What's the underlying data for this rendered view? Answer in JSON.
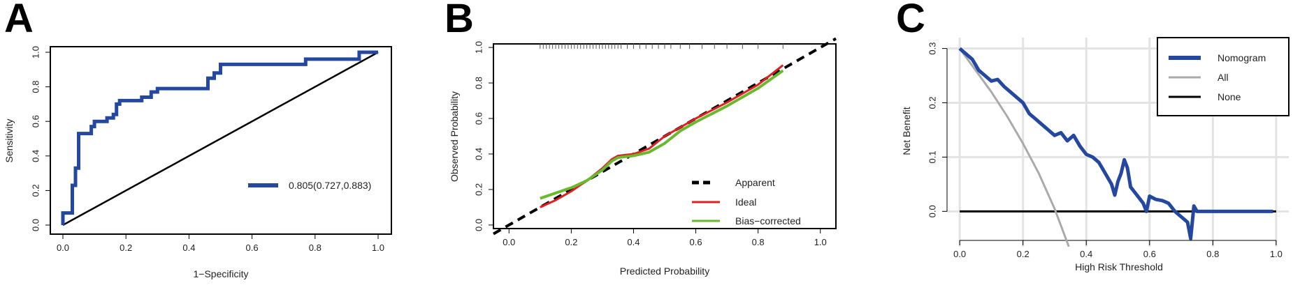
{
  "panels": [
    {
      "letter": "A"
    },
    {
      "letter": "B"
    },
    {
      "letter": "C"
    }
  ],
  "chart_data": [
    {
      "type": "line",
      "panel": "A",
      "xlabel": "1−Specificity",
      "ylabel": "Sensitivity",
      "xlim": [
        0,
        1
      ],
      "ylim": [
        0,
        1
      ],
      "xticks": [
        "0.0",
        "0.2",
        "0.4",
        "0.6",
        "0.8",
        "1.0"
      ],
      "yticks": [
        "0.0",
        "0.2",
        "0.4",
        "0.6",
        "0.8",
        "1.0"
      ],
      "legend_placement": "bottom-right",
      "colors": {
        "roc": "#2447a0",
        "reference": "#000000"
      },
      "series": [
        {
          "name": "0.805(0.727,0.883)",
          "x": [
            0,
            0,
            0.03,
            0.03,
            0.04,
            0.04,
            0.05,
            0.05,
            0.06,
            0.06,
            0.09,
            0.09,
            0.1,
            0.1,
            0.14,
            0.14,
            0.16,
            0.16,
            0.17,
            0.17,
            0.18,
            0.18,
            0.2,
            0.2,
            0.25,
            0.25,
            0.28,
            0.28,
            0.3,
            0.3,
            0.46,
            0.46,
            0.48,
            0.48,
            0.5,
            0.5,
            0.77,
            0.77,
            0.94,
            0.94,
            1.0
          ],
          "y": [
            0,
            0.07,
            0.07,
            0.23,
            0.23,
            0.33,
            0.33,
            0.53,
            0.53,
            0.53,
            0.53,
            0.57,
            0.57,
            0.6,
            0.6,
            0.62,
            0.62,
            0.64,
            0.64,
            0.7,
            0.7,
            0.72,
            0.72,
            0.72,
            0.72,
            0.74,
            0.74,
            0.77,
            0.77,
            0.79,
            0.79,
            0.85,
            0.85,
            0.88,
            0.88,
            0.93,
            0.93,
            0.96,
            0.96,
            1.0,
            1.0
          ]
        },
        {
          "x": [
            0,
            1
          ],
          "y": [
            0,
            1
          ]
        }
      ]
    },
    {
      "type": "line",
      "panel": "B",
      "xlabel": "Predicted Probability",
      "ylabel": "Observed Probability",
      "xlim": [
        -0.05,
        1.05
      ],
      "ylim": [
        -0.02,
        1.02
      ],
      "xticks": [
        "0.0",
        "0.2",
        "0.4",
        "0.6",
        "0.8",
        "1.0"
      ],
      "yticks": [
        "0.0",
        "0.2",
        "0.4",
        "0.6",
        "0.8",
        "1.0"
      ],
      "legend_placement": "bottom-right",
      "colors": {
        "apparent": "#000000",
        "ideal": "#e02020",
        "bias": "#6ab82e"
      },
      "series": [
        {
          "name": "Apparent",
          "x": [
            -0.05,
            1.05
          ],
          "y": [
            -0.05,
            1.05
          ]
        },
        {
          "name": "Ideal",
          "x": [
            0.1,
            0.15,
            0.2,
            0.25,
            0.3,
            0.33,
            0.35,
            0.4,
            0.45,
            0.5,
            0.55,
            0.6,
            0.7,
            0.8,
            0.88
          ],
          "y": [
            0.1,
            0.14,
            0.19,
            0.25,
            0.32,
            0.37,
            0.39,
            0.4,
            0.43,
            0.5,
            0.55,
            0.6,
            0.69,
            0.79,
            0.9
          ]
        },
        {
          "name": "Bias−corrected",
          "x": [
            0.1,
            0.15,
            0.2,
            0.25,
            0.3,
            0.33,
            0.35,
            0.4,
            0.45,
            0.5,
            0.55,
            0.6,
            0.7,
            0.8,
            0.88
          ],
          "y": [
            0.15,
            0.18,
            0.21,
            0.25,
            0.31,
            0.36,
            0.38,
            0.39,
            0.41,
            0.46,
            0.53,
            0.58,
            0.67,
            0.77,
            0.87
          ]
        }
      ],
      "rug_x": [
        0.1,
        0.11,
        0.12,
        0.13,
        0.14,
        0.15,
        0.16,
        0.17,
        0.18,
        0.19,
        0.2,
        0.21,
        0.22,
        0.23,
        0.24,
        0.25,
        0.26,
        0.27,
        0.28,
        0.29,
        0.3,
        0.31,
        0.32,
        0.33,
        0.34,
        0.35,
        0.36,
        0.38,
        0.4,
        0.42,
        0.44,
        0.46,
        0.48,
        0.5,
        0.52,
        0.55,
        0.58,
        0.62,
        0.66,
        0.7,
        0.75,
        0.8,
        0.88
      ]
    },
    {
      "type": "line",
      "panel": "C",
      "xlabel": "High Risk Threshold",
      "ylabel": "Net Benefit",
      "xlim": [
        -0.04,
        1.04
      ],
      "ylim": [
        -0.065,
        0.32
      ],
      "xticks": [
        "0.0",
        "0.2",
        "0.4",
        "0.6",
        "0.8",
        "1.0"
      ],
      "yticks": [
        "0.0",
        "0.1",
        "0.2",
        "0.3"
      ],
      "grid": true,
      "legend_placement": "top-right",
      "colors": {
        "nomogram": "#2447a0",
        "all": "#aaaaaa",
        "none": "#000000"
      },
      "series": [
        {
          "name": "Nomogram",
          "x": [
            0.0,
            0.02,
            0.04,
            0.06,
            0.08,
            0.1,
            0.12,
            0.14,
            0.16,
            0.18,
            0.2,
            0.22,
            0.24,
            0.26,
            0.28,
            0.3,
            0.32,
            0.34,
            0.36,
            0.38,
            0.4,
            0.42,
            0.44,
            0.46,
            0.48,
            0.49,
            0.5,
            0.51,
            0.52,
            0.53,
            0.54,
            0.56,
            0.58,
            0.59,
            0.6,
            0.62,
            0.64,
            0.66,
            0.68,
            0.7,
            0.72,
            0.73,
            0.74,
            0.75,
            0.8,
            0.9,
            0.99
          ],
          "y": [
            0.3,
            0.29,
            0.28,
            0.26,
            0.25,
            0.24,
            0.243,
            0.23,
            0.22,
            0.21,
            0.2,
            0.18,
            0.17,
            0.16,
            0.15,
            0.14,
            0.145,
            0.13,
            0.14,
            0.12,
            0.105,
            0.1,
            0.09,
            0.07,
            0.05,
            0.03,
            0.055,
            0.07,
            0.095,
            0.08,
            0.045,
            0.03,
            0.015,
            0.0,
            0.028,
            0.022,
            0.02,
            0.015,
            0.0,
            -0.01,
            -0.02,
            -0.05,
            0.01,
            0.0,
            0.0,
            0.0,
            0.0
          ]
        },
        {
          "name": "All",
          "x": [
            0.0,
            0.05,
            0.1,
            0.15,
            0.2,
            0.25,
            0.3,
            0.345
          ],
          "y": [
            0.3,
            0.26,
            0.22,
            0.175,
            0.125,
            0.07,
            0.005,
            -0.065
          ]
        },
        {
          "name": "None",
          "x": [
            0,
            1
          ],
          "y": [
            0,
            0
          ]
        }
      ]
    }
  ]
}
